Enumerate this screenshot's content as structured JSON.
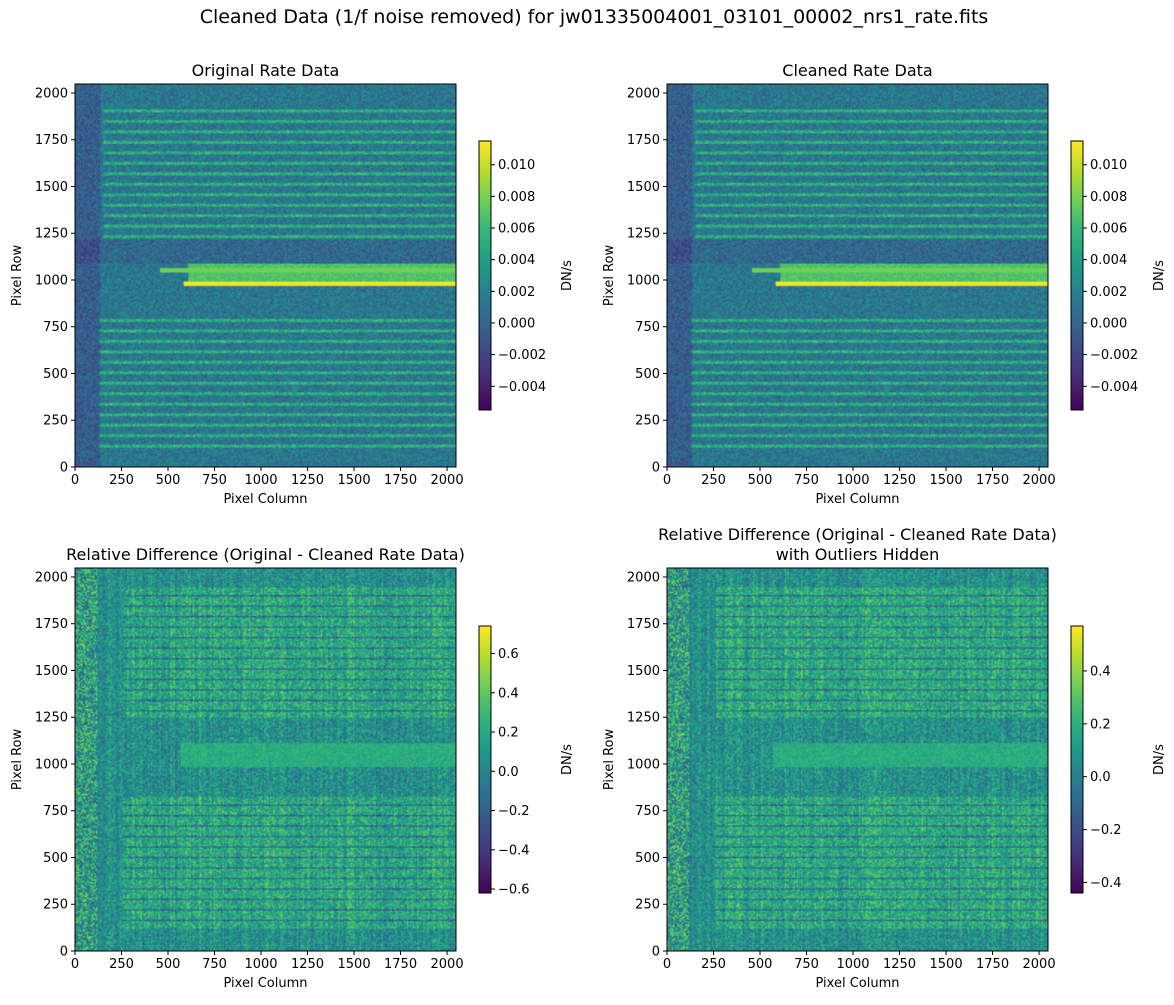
{
  "figure": {
    "suptitle": "Cleaned Data (1/f noise removed) for jw01335004001_03101_00002_nrs1_rate.fits"
  },
  "colors": {
    "viridis": [
      "#440154",
      "#482878",
      "#3e4989",
      "#31688e",
      "#26828e",
      "#1f9e89",
      "#35b779",
      "#6ece58",
      "#b5de2b",
      "#fde725"
    ]
  },
  "chart_data": [
    {
      "type": "heatmap",
      "title": [
        "Original Rate Data"
      ],
      "xlabel": "Pixel Column",
      "ylabel": "Pixel Row",
      "xlim": [
        0,
        2048
      ],
      "ylim": [
        0,
        2048
      ],
      "xticks": [
        0,
        250,
        500,
        750,
        1000,
        1250,
        1500,
        1750,
        2000
      ],
      "yticks": [
        0,
        250,
        500,
        750,
        1000,
        1250,
        1500,
        1750,
        2000
      ],
      "colormap": "viridis",
      "colorbar": {
        "label": "DN/s",
        "range": [
          -0.0055,
          0.0115
        ],
        "ticks": [
          -0.004,
          -0.002,
          0.0,
          0.002,
          0.004,
          0.006,
          0.008,
          0.01
        ],
        "tick_labels": [
          "−0.004",
          "−0.002",
          "0.000",
          "0.002",
          "0.004",
          "0.006",
          "0.008",
          "0.010"
        ]
      }
    },
    {
      "type": "heatmap",
      "title": [
        "Cleaned Rate Data"
      ],
      "xlabel": "Pixel Column",
      "ylabel": "Pixel Row",
      "xlim": [
        0,
        2048
      ],
      "ylim": [
        0,
        2048
      ],
      "xticks": [
        0,
        250,
        500,
        750,
        1000,
        1250,
        1500,
        1750,
        2000
      ],
      "yticks": [
        0,
        250,
        500,
        750,
        1000,
        1250,
        1500,
        1750,
        2000
      ],
      "colormap": "viridis",
      "colorbar": {
        "label": "DN/s",
        "range": [
          -0.0055,
          0.0115
        ],
        "ticks": [
          -0.004,
          -0.002,
          0.0,
          0.002,
          0.004,
          0.006,
          0.008,
          0.01
        ],
        "tick_labels": [
          "−0.004",
          "−0.002",
          "0.000",
          "0.002",
          "0.004",
          "0.006",
          "0.008",
          "0.010"
        ]
      }
    },
    {
      "type": "heatmap",
      "title": [
        "Relative Difference (Original - Cleaned Rate Data)"
      ],
      "xlabel": "Pixel Column",
      "ylabel": "Pixel Row",
      "xlim": [
        0,
        2048
      ],
      "ylim": [
        0,
        2048
      ],
      "xticks": [
        0,
        250,
        500,
        750,
        1000,
        1250,
        1500,
        1750,
        2000
      ],
      "yticks": [
        0,
        250,
        500,
        750,
        1000,
        1250,
        1500,
        1750,
        2000
      ],
      "colormap": "viridis",
      "colorbar": {
        "label": "DN/s",
        "range": [
          -0.62,
          0.74
        ],
        "ticks": [
          -0.6,
          -0.4,
          -0.2,
          0.0,
          0.2,
          0.4,
          0.6
        ],
        "tick_labels": [
          "−0.6",
          "−0.4",
          "−0.2",
          "0.0",
          "0.2",
          "0.4",
          "0.6"
        ]
      }
    },
    {
      "type": "heatmap",
      "title": [
        "Relative Difference (Original - Cleaned Rate Data)",
        "with Outliers Hidden"
      ],
      "xlabel": "Pixel Column",
      "ylabel": "Pixel Row",
      "xlim": [
        0,
        2048
      ],
      "ylim": [
        0,
        2048
      ],
      "xticks": [
        0,
        250,
        500,
        750,
        1000,
        1250,
        1500,
        1750,
        2000
      ],
      "yticks": [
        0,
        250,
        500,
        750,
        1000,
        1250,
        1500,
        1750,
        2000
      ],
      "colormap": "viridis",
      "colorbar": {
        "label": "DN/s",
        "range": [
          -0.44,
          0.57
        ],
        "ticks": [
          -0.4,
          -0.2,
          0.0,
          0.2,
          0.4
        ],
        "tick_labels": [
          "−0.4",
          "−0.2",
          "0.0",
          "0.2",
          "0.4"
        ]
      }
    }
  ]
}
